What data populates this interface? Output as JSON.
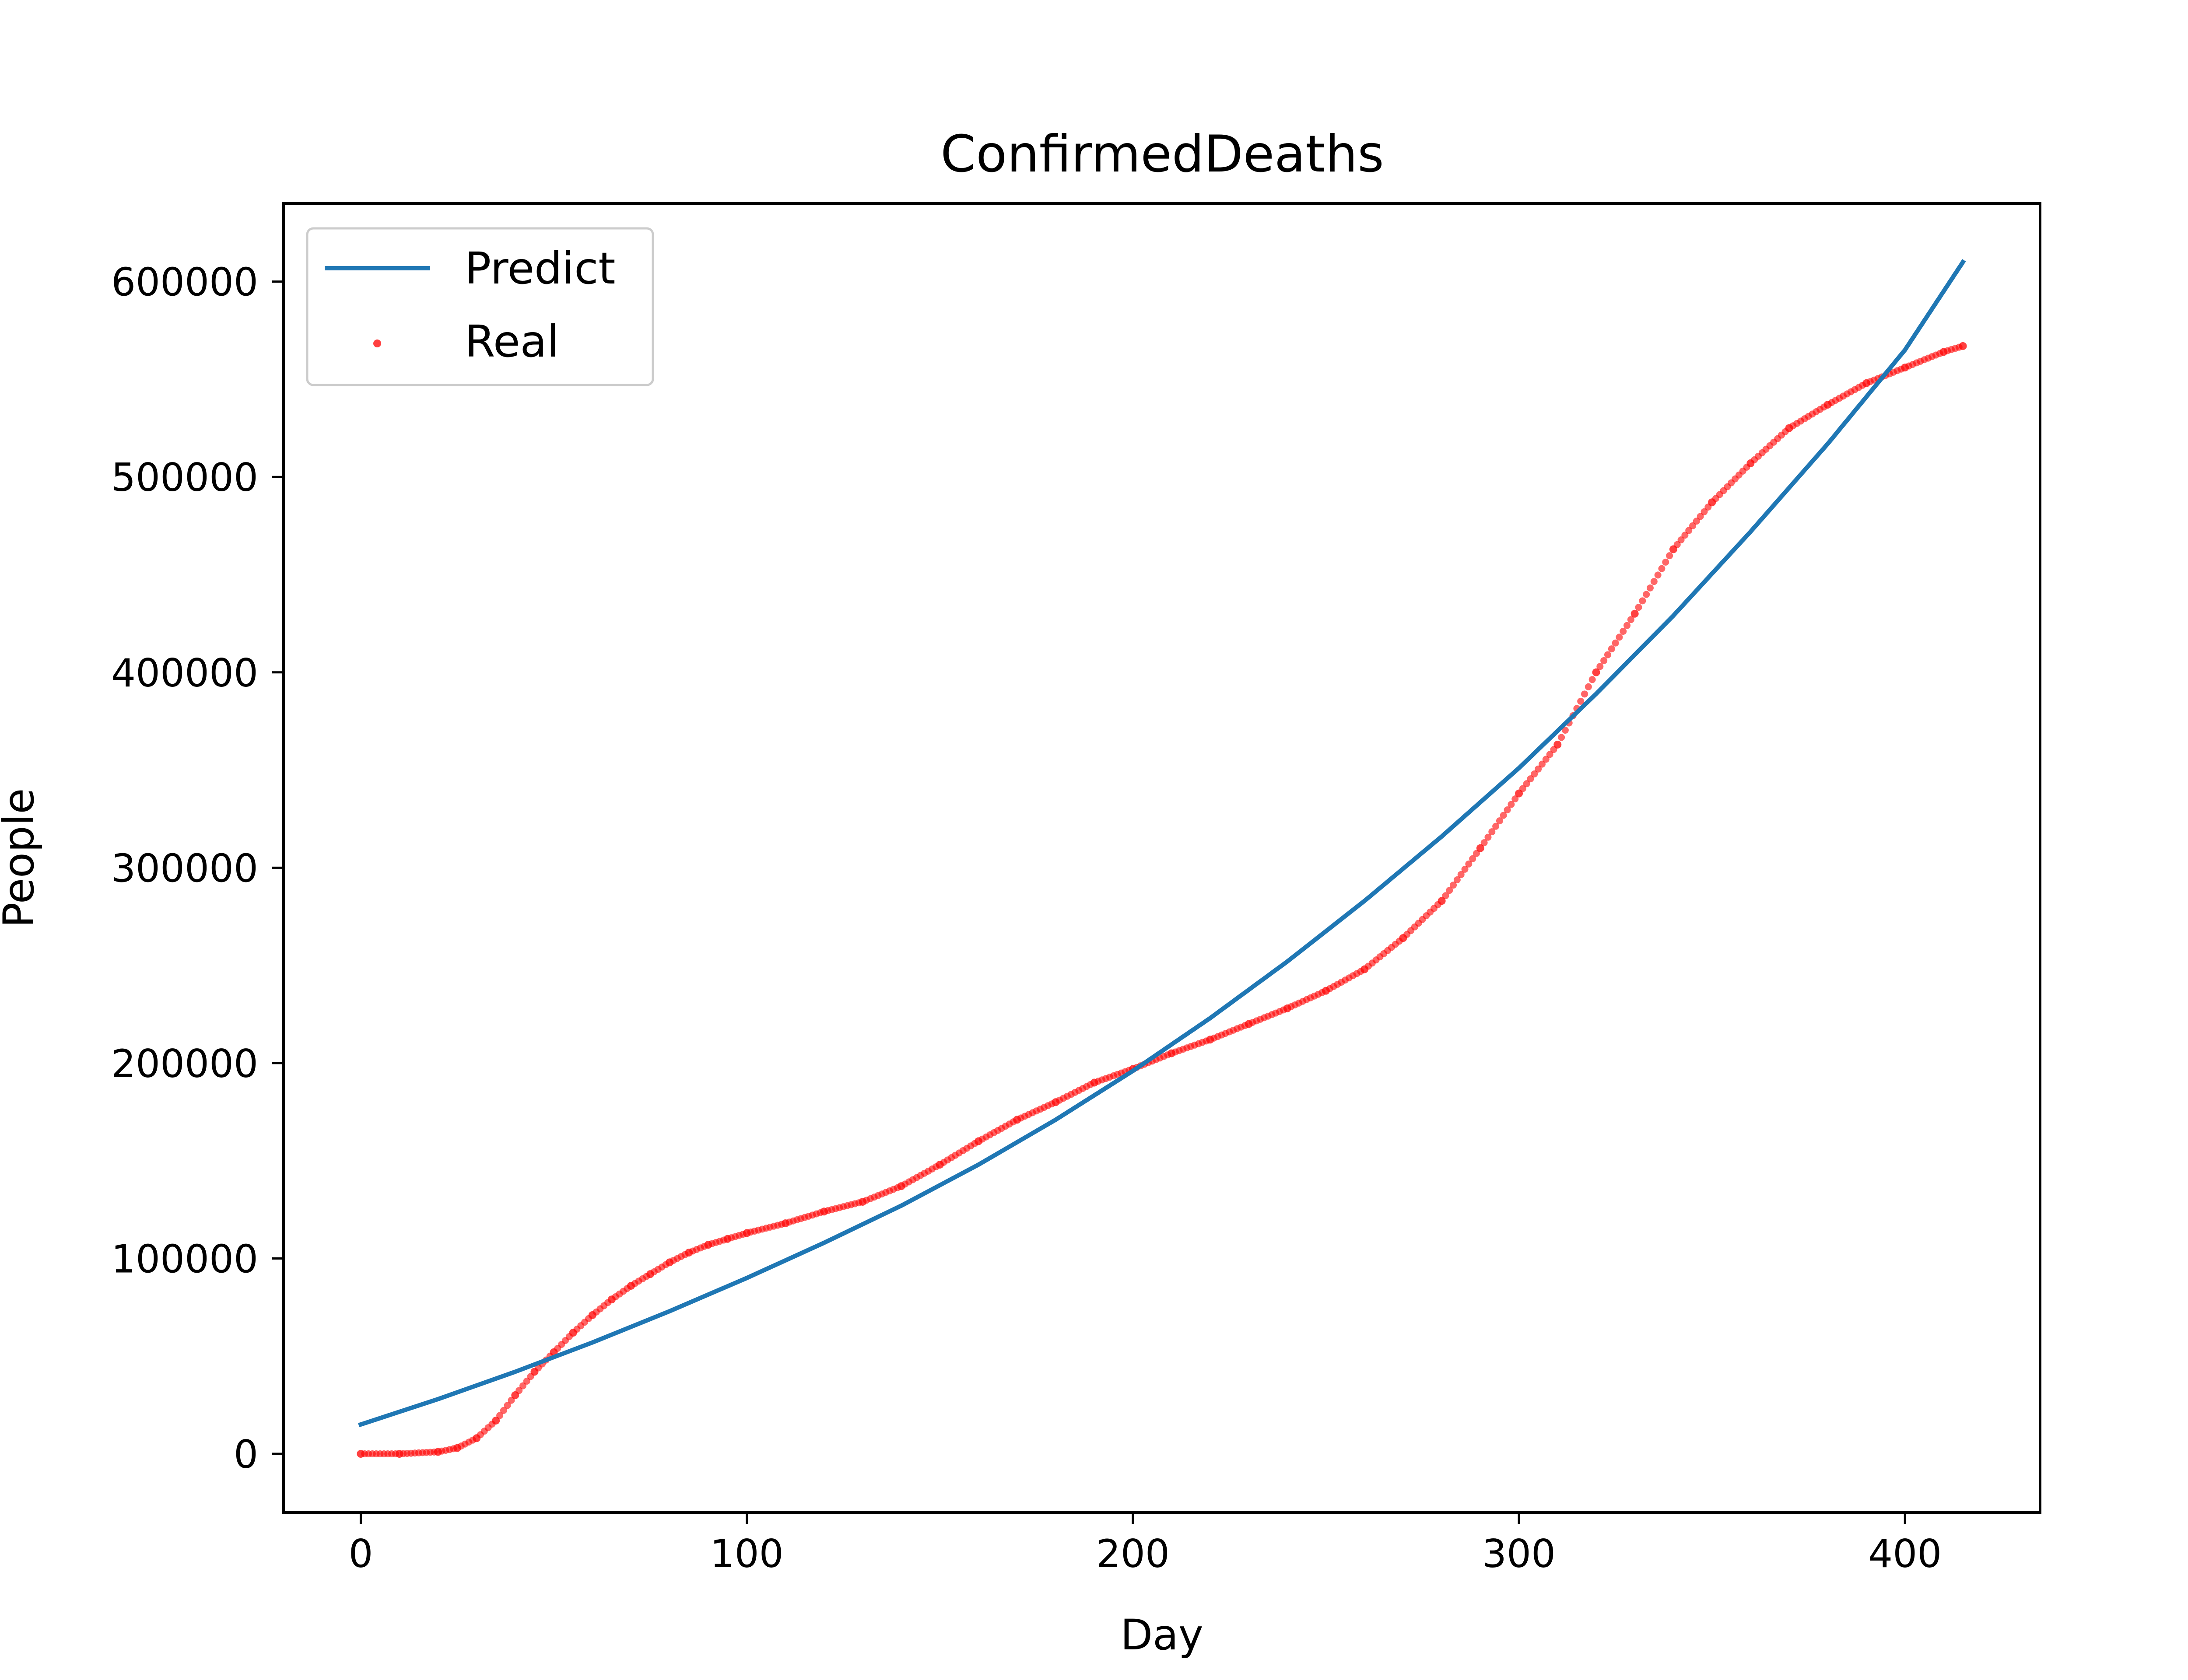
{
  "chart_data": {
    "type": "line",
    "title": "ConfirmedDeaths",
    "xlabel": "Day",
    "ylabel": "People",
    "xlim": [
      -20,
      435
    ],
    "ylim": [
      -30000,
      640000
    ],
    "xticks": [
      0,
      100,
      200,
      300,
      400
    ],
    "xtick_labels": [
      "0",
      "100",
      "200",
      "300",
      "400"
    ],
    "yticks": [
      0,
      100000,
      200000,
      300000,
      400000,
      500000,
      600000
    ],
    "ytick_labels": [
      "0",
      "100000",
      "200000",
      "300000",
      "400000",
      "500000",
      "600000"
    ],
    "grid": false,
    "legend": {
      "location": "top-left",
      "entries": [
        "Predict",
        "Real"
      ]
    },
    "series": [
      {
        "name": "Predict",
        "kind": "line",
        "color": "#1f77b4",
        "x": [
          0,
          20,
          40,
          60,
          80,
          100,
          120,
          140,
          160,
          180,
          200,
          220,
          240,
          260,
          280,
          300,
          320,
          340,
          360,
          380,
          400,
          415
        ],
        "y": [
          15000,
          28000,
          42000,
          57000,
          73000,
          90000,
          108000,
          127000,
          148000,
          171000,
          196000,
          223000,
          252000,
          283000,
          316000,
          351000,
          389000,
          429000,
          472000,
          517000,
          565000,
          610000
        ]
      },
      {
        "name": "Real",
        "kind": "scatter",
        "color": "#ff0000",
        "x": [
          0,
          10,
          20,
          25,
          30,
          35,
          40,
          45,
          50,
          55,
          60,
          65,
          70,
          75,
          80,
          85,
          90,
          95,
          100,
          110,
          120,
          130,
          140,
          150,
          160,
          170,
          180,
          190,
          200,
          210,
          220,
          230,
          240,
          250,
          260,
          270,
          280,
          290,
          300,
          310,
          320,
          330,
          340,
          350,
          360,
          370,
          380,
          390,
          400,
          410,
          415
        ],
        "y": [
          0,
          0,
          1000,
          3000,
          8000,
          17000,
          30000,
          42000,
          52000,
          62000,
          71000,
          79000,
          86000,
          92000,
          98000,
          103000,
          107000,
          110000,
          113000,
          118000,
          124000,
          129000,
          137000,
          148000,
          160000,
          171000,
          180000,
          190000,
          197000,
          205000,
          212000,
          220000,
          228000,
          237000,
          248000,
          264000,
          283000,
          310000,
          338000,
          363000,
          400000,
          430000,
          463000,
          487000,
          507000,
          525000,
          537000,
          548000,
          556000,
          564000,
          567000
        ]
      }
    ]
  }
}
